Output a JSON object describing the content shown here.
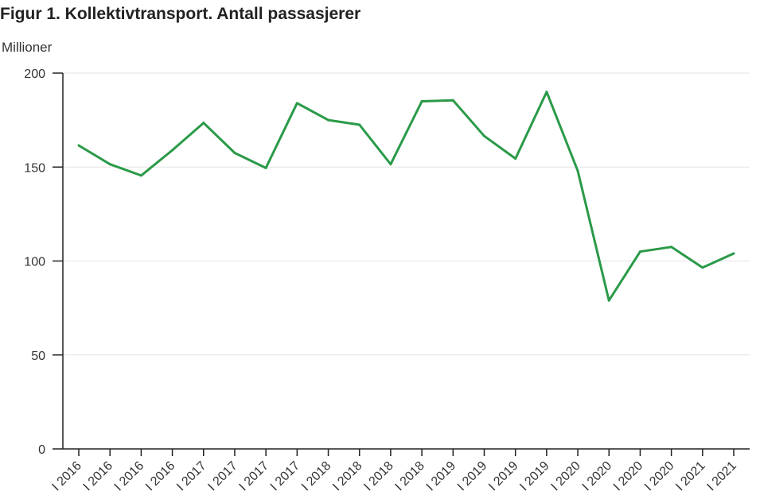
{
  "title": "Figur 1. Kollektivtransport. Antall passasjerer",
  "colors": {
    "series": "#2a9a48",
    "axis": "#222222",
    "grid": "#e3e3e3"
  },
  "chart_data": {
    "type": "line",
    "title": "Figur 1. Kollektivtransport. Antall passasjerer",
    "ylabel": "Millioner",
    "xlabel": "",
    "ylim": [
      0,
      200
    ],
    "yticks": [
      0,
      50,
      100,
      150,
      200
    ],
    "grid": true,
    "x": [
      "I 2016",
      "I 2016",
      "I 2016",
      "I 2016",
      "I 2017",
      "I 2017",
      "I 2017",
      "I 2017",
      "I 2018",
      "I 2018",
      "I 2018",
      "I 2018",
      "I 2019",
      "I 2019",
      "I 2019",
      "I 2019",
      "I 2020",
      "I 2020",
      "I 2020",
      "I 2020",
      "I 2021",
      "I 2021"
    ],
    "series": [
      {
        "values": [
          161.5,
          151.5,
          145.5,
          159,
          173.5,
          157.5,
          149.5,
          184,
          175,
          172.5,
          151.5,
          185,
          185.5,
          166.5,
          154.5,
          190,
          148,
          79,
          105,
          107.5,
          96.5,
          104
        ]
      }
    ]
  }
}
